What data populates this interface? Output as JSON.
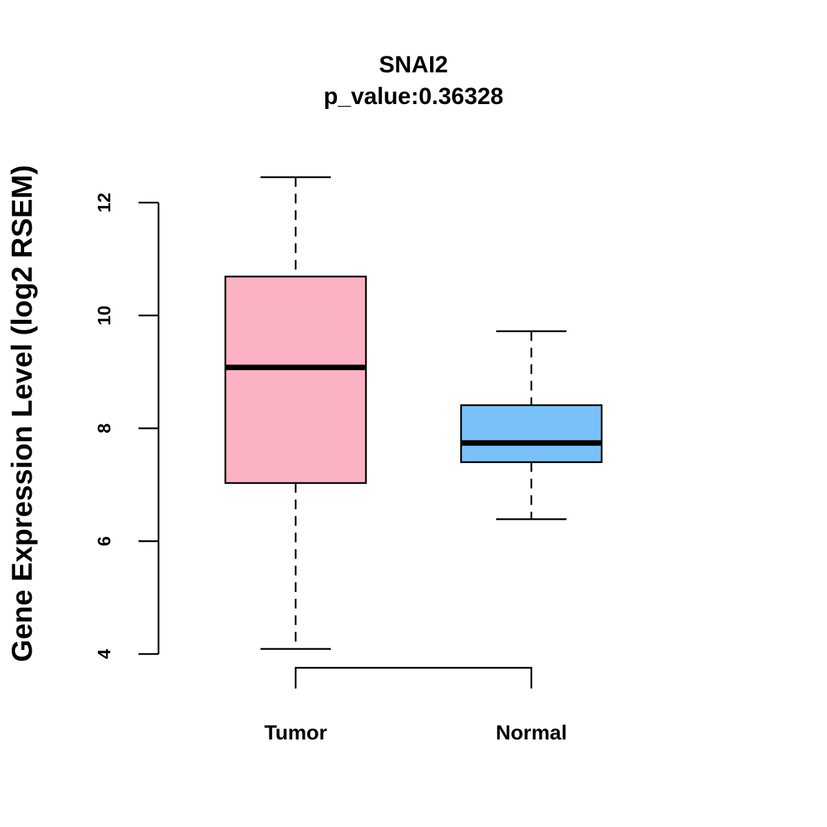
{
  "chart_data": {
    "type": "boxplot",
    "title": "SNAI2",
    "subtitle": "p_value:0.36328",
    "xlabel": "",
    "ylabel": "Gene Expression Level (log2 RSEM)",
    "ylim": [
      4,
      12
    ],
    "yticks": [
      4,
      6,
      8,
      10,
      12
    ],
    "categories": [
      "Tumor",
      "Normal"
    ],
    "boxes": [
      {
        "name": "Tumor",
        "min": 4.09,
        "q1": 7.03,
        "median": 9.08,
        "q3": 10.69,
        "max": 12.45,
        "color": "#FBB2C3"
      },
      {
        "name": "Normal",
        "min": 6.39,
        "q1": 7.4,
        "median": 7.74,
        "q3": 8.41,
        "max": 9.72,
        "color": "#79C1F8"
      }
    ],
    "comparison_bracket": [
      "Tumor",
      "Normal"
    ]
  }
}
